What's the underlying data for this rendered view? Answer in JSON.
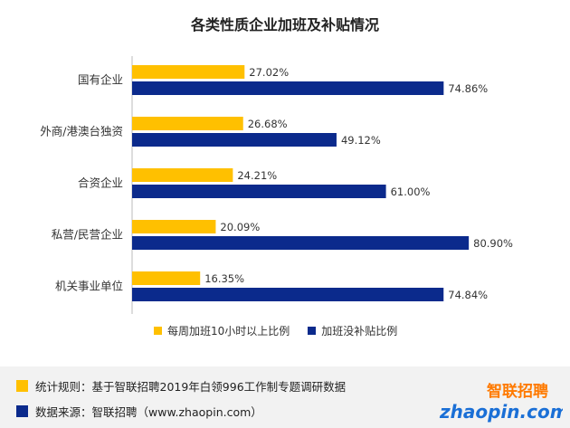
{
  "chart_data": {
    "type": "bar",
    "orientation": "horizontal",
    "title": "各类性质企业加班及补贴情况",
    "categories": [
      "国有企业",
      "外商/港澳台独资",
      "合资企业",
      "私营/民营企业",
      "机关事业单位"
    ],
    "series": [
      {
        "name": "每周加班10小时以上比例",
        "color": "#ffc000",
        "values": [
          27.02,
          26.68,
          24.21,
          20.09,
          16.35
        ],
        "labels": [
          "27.02%",
          "26.68%",
          "24.21%",
          "20.09%",
          "16.35%"
        ]
      },
      {
        "name": "加班没补贴比例",
        "color": "#0b2a8c",
        "values": [
          74.86,
          49.12,
          61.0,
          80.9,
          74.84
        ],
        "labels": [
          "74.86%",
          "49.12%",
          "61.00%",
          "80.90%",
          "74.84%"
        ]
      }
    ],
    "xlim": [
      0,
      100
    ],
    "grid": false,
    "legend_position": "bottom"
  },
  "footer": {
    "rule": {
      "text": "统计规则：基于智联招聘2019年白领996工作制专题调研数据",
      "color": "#ffc000"
    },
    "source": {
      "text": "数据来源：智联招聘（www.zhaopin.com）",
      "color": "#0b2a8c"
    }
  },
  "logo": {
    "name": "智联招聘",
    "url_text": "zhaopin.com"
  }
}
